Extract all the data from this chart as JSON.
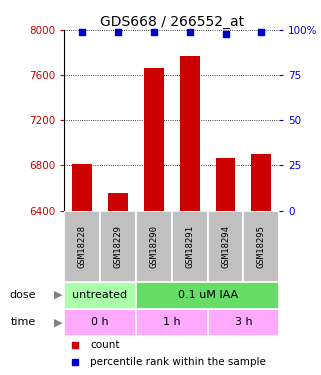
{
  "title": "GDS668 / 266552_at",
  "samples": [
    "GSM18228",
    "GSM18229",
    "GSM18290",
    "GSM18291",
    "GSM18294",
    "GSM18295"
  ],
  "bar_values": [
    6810,
    6560,
    7660,
    7770,
    6870,
    6900
  ],
  "bar_color": "#cc0000",
  "percentile_values": [
    99,
    99,
    99,
    99,
    98,
    99
  ],
  "percentile_color": "#0000cc",
  "ylim_left": [
    6400,
    8000
  ],
  "yticks_left": [
    6400,
    6800,
    7200,
    7600,
    8000
  ],
  "ylim_right": [
    0,
    100
  ],
  "yticks_right": [
    0,
    25,
    50,
    75,
    100
  ],
  "dose_labels": [
    {
      "text": "untreated",
      "start": 0,
      "end": 2,
      "color": "#aaffaa"
    },
    {
      "text": "0.1 uM IAA",
      "start": 2,
      "end": 6,
      "color": "#66dd66"
    }
  ],
  "time_labels": [
    {
      "text": "0 h",
      "start": 0,
      "end": 2,
      "color": "#ffaaff"
    },
    {
      "text": "1 h",
      "start": 2,
      "end": 4,
      "color": "#ffaaff"
    },
    {
      "text": "3 h",
      "start": 4,
      "end": 6,
      "color": "#ffaaff"
    }
  ],
  "dose_arrow_label": "dose",
  "time_arrow_label": "time",
  "legend_count_label": "count",
  "legend_percentile_label": "percentile rank within the sample",
  "title_fontsize": 10,
  "tick_fontsize": 7.5,
  "label_fontsize": 8,
  "sample_fontsize": 6.5
}
